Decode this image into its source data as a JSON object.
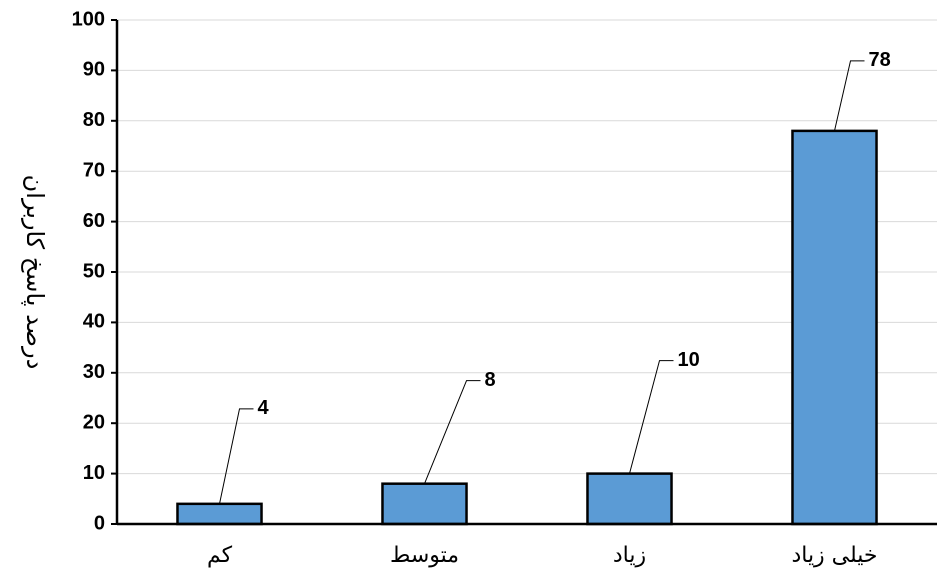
{
  "chart_data": {
    "type": "bar",
    "categories": [
      "کم",
      "متوسط",
      "زیاد",
      "خیلی زیاد"
    ],
    "values": [
      4,
      8,
      10,
      78
    ],
    "data_labels": [
      "4",
      "8",
      "10",
      "78"
    ],
    "title": "",
    "xlabel": "",
    "ylabel": "درصد پاسخ کاربران",
    "ylim": [
      0,
      100
    ],
    "yticks": [
      0,
      10,
      20,
      30,
      40,
      50,
      60,
      70,
      80,
      90,
      100
    ],
    "ytick_labels": [
      "0",
      "10",
      "20",
      "30",
      "40",
      "50",
      "60",
      "70",
      "80",
      "90",
      "100"
    ],
    "grid": true,
    "legend": "none",
    "colors": {
      "bar_fill": "#5b9bd5",
      "bar_stroke": "#000000",
      "grid": "#d9d9d9",
      "axis": "#000000"
    }
  }
}
